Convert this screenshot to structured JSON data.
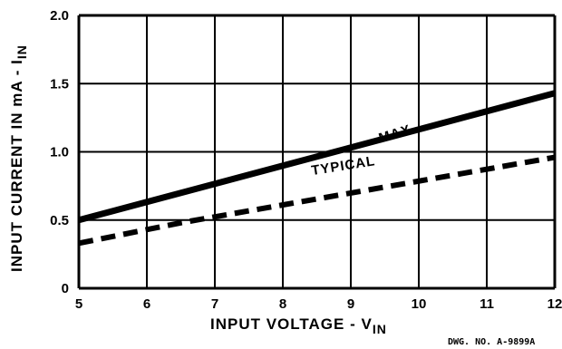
{
  "chart_data": {
    "type": "line",
    "title": "",
    "xlabel": "INPUT VOLTAGE - V",
    "xlabel_sub": "IN",
    "ylabel": "INPUT CURRENT IN mA - I",
    "ylabel_sub": "IN",
    "xlim": [
      5,
      12
    ],
    "ylim": [
      0,
      2.0
    ],
    "x_ticks": [
      5,
      6,
      7,
      8,
      9,
      10,
      11,
      12
    ],
    "x_tick_labels": [
      "5",
      "6",
      "7",
      "8",
      "9",
      "10",
      "11",
      "12"
    ],
    "y_ticks": [
      0,
      0.5,
      1.0,
      1.5,
      2.0
    ],
    "y_tick_labels": [
      "0",
      "0.5",
      "1.0",
      "1.5",
      "2.0"
    ],
    "grid": true,
    "series": [
      {
        "name": "MAX.",
        "style": "solid",
        "x": [
          5,
          12
        ],
        "y": [
          0.5,
          1.43
        ]
      },
      {
        "name": "TYPICAL",
        "style": "dashed",
        "x": [
          5,
          6.5,
          12
        ],
        "y": [
          0.33,
          0.48,
          0.96
        ]
      }
    ],
    "annotation": "DWG. NO. A-9899A"
  }
}
